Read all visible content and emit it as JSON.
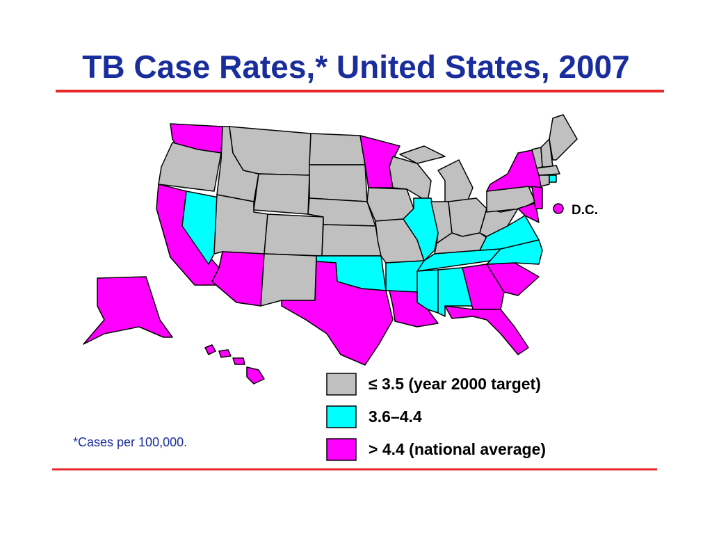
{
  "title": "TB Case Rates,* United States, 2007",
  "legend": [
    {
      "label": "≤ 3.5 (year 2000 target)",
      "color": "#c0c0c0"
    },
    {
      "label": "3.6–4.4",
      "color": "#00ffff"
    },
    {
      "label": "> 4.4 (national average)",
      "color": "#ff00ff"
    }
  ],
  "dc_label": "D.C.",
  "footnote": "*Cases per 100,000."
}
